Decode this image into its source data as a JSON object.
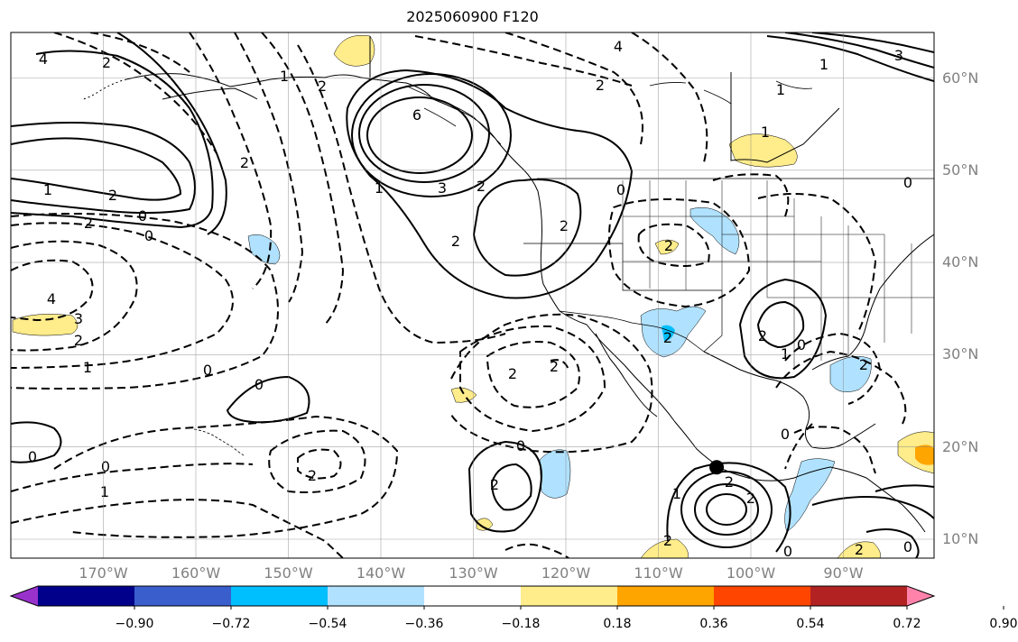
{
  "title": "2025060900 F120",
  "lat_labels": [
    {
      "lat": 60,
      "label": "60°N"
    },
    {
      "lat": 50,
      "label": "50°N"
    },
    {
      "lat": 40,
      "label": "40°N"
    },
    {
      "lat": 30,
      "label": "30°N"
    },
    {
      "lat": 20,
      "label": "20°N"
    },
    {
      "lat": 10,
      "label": "10°N"
    }
  ],
  "lon_labels": [
    {
      "lon": -170,
      "label": "170°W"
    },
    {
      "lon": -160,
      "label": "160°W"
    },
    {
      "lon": -150,
      "label": "150°W"
    },
    {
      "lon": -140,
      "label": "140°W"
    },
    {
      "lon": -130,
      "label": "130°W"
    },
    {
      "lon": -120,
      "label": "120°W"
    },
    {
      "lon": -110,
      "label": "110°W"
    },
    {
      "lon": -100,
      "label": "100°W"
    },
    {
      "lon": -90,
      "label": "90°W"
    }
  ],
  "colorbar": {
    "colors": [
      "#9932cc",
      "#00008b",
      "#3a5fcd",
      "#00bfff",
      "#b0e2ff",
      "#ffffff",
      "#ffec8b",
      "#ffa500",
      "#ff4500",
      "#b22222",
      "#ff82ab"
    ],
    "ticks": [
      "−0.90",
      "−0.72",
      "−0.54",
      "−0.36",
      "−0.18",
      "0.18",
      "0.36",
      "0.54",
      "0.72",
      "0.90"
    ]
  },
  "contour_labels": [
    "4",
    "2",
    "4",
    "1",
    "3",
    "1",
    "2",
    "0",
    "0",
    "2",
    "2",
    "2",
    "1",
    "6",
    "1",
    "3",
    "2",
    "0",
    "2",
    "2",
    "1",
    "1",
    "2",
    "4",
    "3",
    "2",
    "1",
    "0",
    "0",
    "0",
    "2",
    "2",
    "2",
    "1",
    "0",
    "0",
    "2",
    "2",
    "2",
    "2",
    "2",
    "1",
    "0",
    "1",
    "2",
    "2",
    "2",
    "0",
    "0",
    "2",
    "0",
    "0"
  ],
  "marker": {
    "lat": 17.8,
    "lon": -103.7
  }
}
